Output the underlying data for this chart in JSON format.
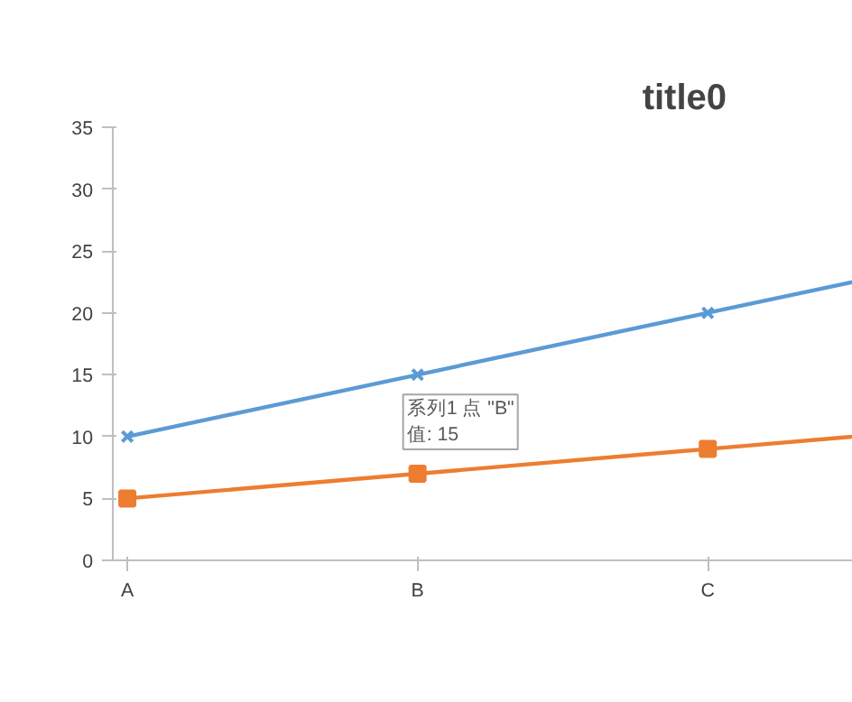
{
  "chart_data": {
    "type": "line",
    "title": "title0",
    "categories": [
      "A",
      "B",
      "C",
      null
    ],
    "series": [
      {
        "color": "#5b9bd5",
        "values": [
          10,
          15,
          20,
          25
        ],
        "marker": "cross"
      },
      {
        "color": "#ed7d31",
        "values": [
          5,
          7,
          9,
          11
        ],
        "marker": "square"
      }
    ],
    "ylim": [
      0,
      35
    ],
    "yticks": [
      0,
      5,
      10,
      15,
      20,
      25,
      30,
      35
    ],
    "grid": false,
    "annotations": [
      {
        "text": "系列1 点 \"B\"\n值: 15",
        "x": "B",
        "y": 15
      }
    ]
  }
}
